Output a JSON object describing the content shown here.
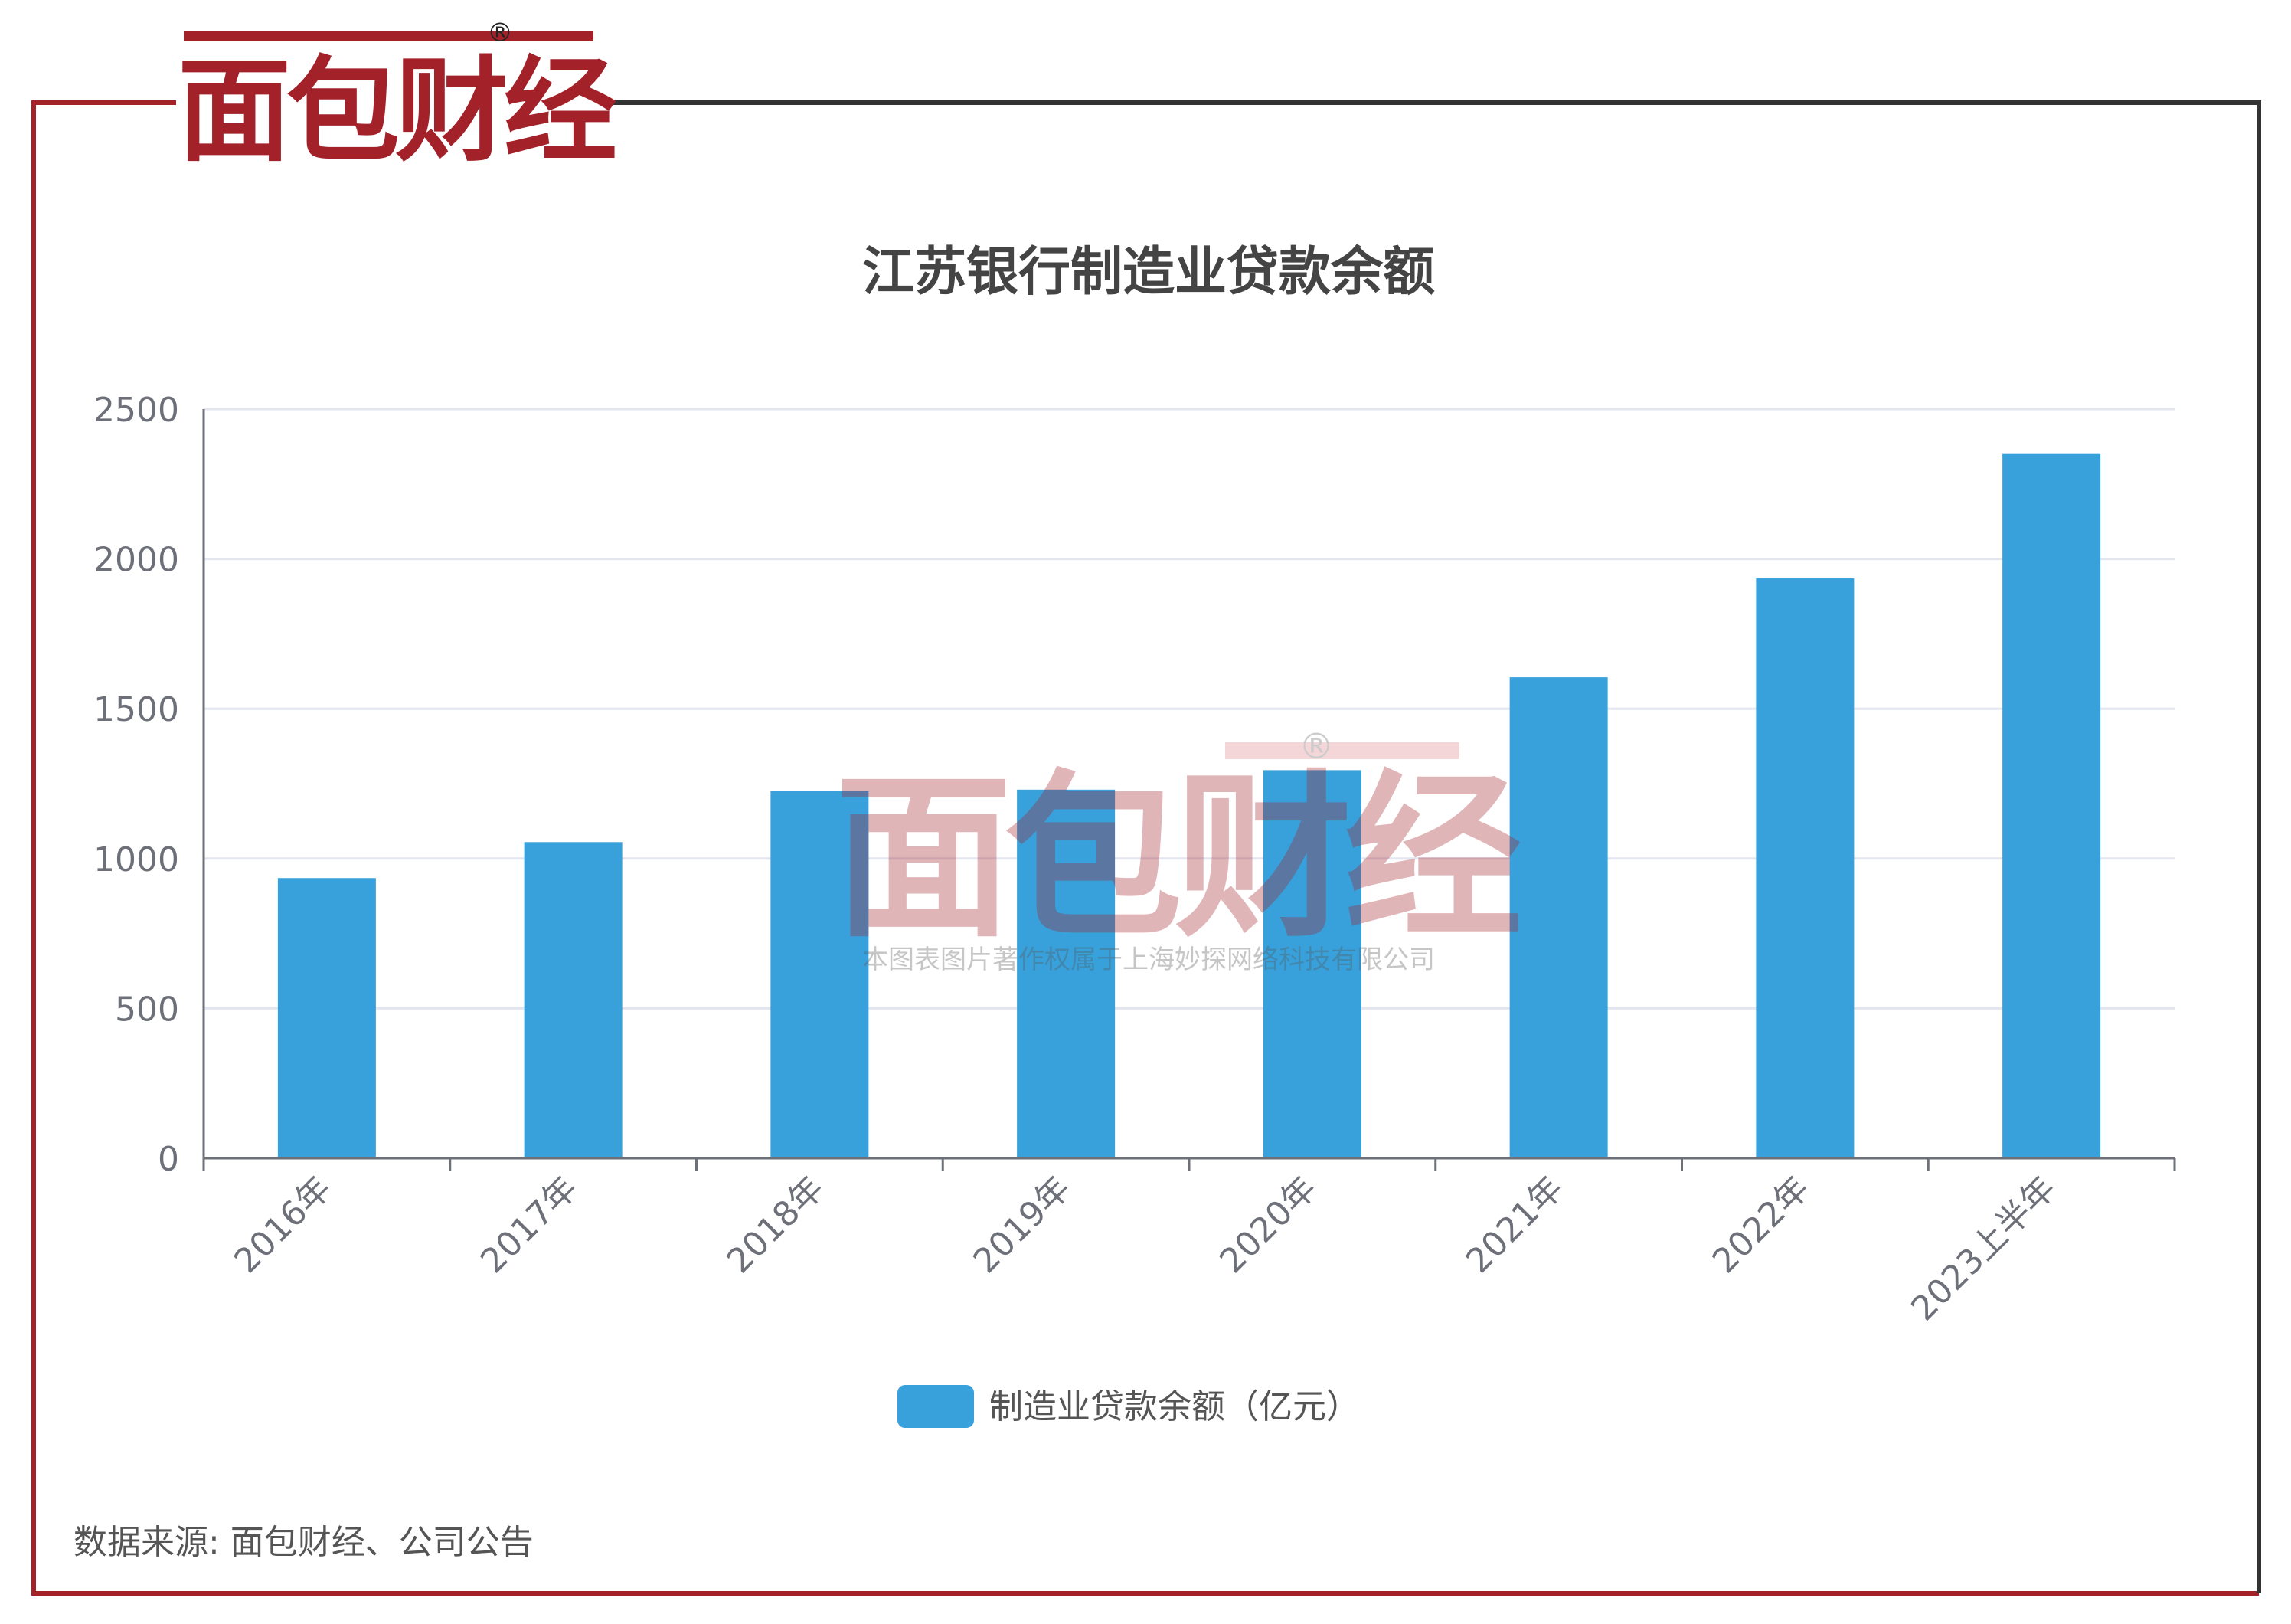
{
  "brand": {
    "logo_text": "面包财经",
    "registered_mark": "®",
    "watermark_logo_text": "面包财经",
    "watermark_notice": "本图表图片著作权属于上海妙探网络科技有限公司"
  },
  "colors": {
    "brand_red": "#A3222A",
    "frame_dark": "#333333",
    "bar_blue": "#38A1DB",
    "grid": "#E3E6EF",
    "axis": "#6E7079"
  },
  "chart_data": {
    "type": "bar",
    "title": "江苏银行制造业贷款余额",
    "categories": [
      "2016年",
      "2017年",
      "2018年",
      "2019年",
      "2020年",
      "2021年",
      "2022年",
      "2023上半年"
    ],
    "series": [
      {
        "name": "制造业贷款余额（亿元）",
        "values": [
          935,
          1055,
          1225,
          1230,
          1295,
          1605,
          1935,
          2350
        ]
      }
    ],
    "ylim": [
      0,
      2500
    ],
    "yticks": [
      0,
      500,
      1000,
      1500,
      2000,
      2500
    ],
    "grid": true,
    "legend_position": "bottom-center"
  },
  "footer": {
    "source": "数据来源: 面包财经、公司公告"
  }
}
